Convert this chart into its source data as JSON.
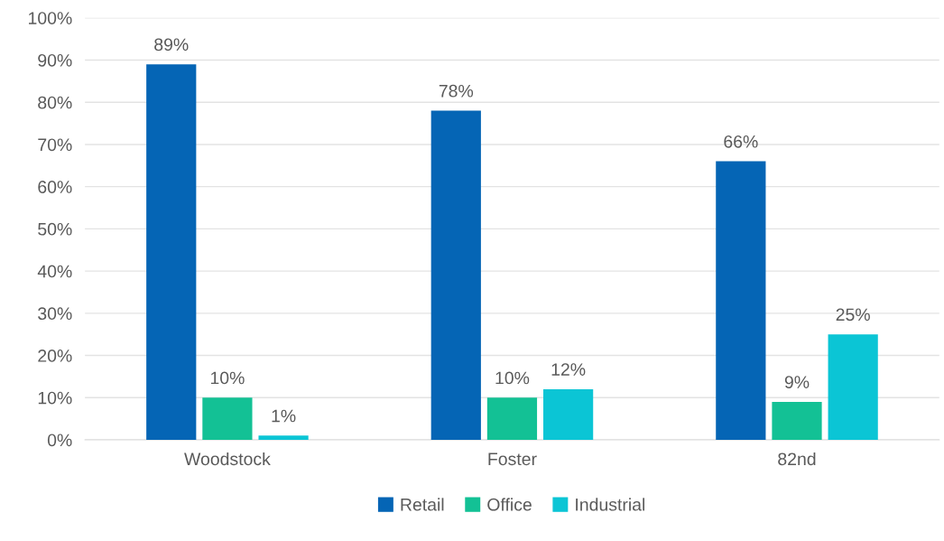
{
  "chart_data": {
    "type": "bar",
    "categories": [
      "Woodstock",
      "Foster",
      "82nd"
    ],
    "series": [
      {
        "name": "Retail",
        "color": "#0565b5",
        "values": [
          89,
          78,
          66
        ],
        "value_labels": [
          "89%",
          "78%",
          "66%"
        ]
      },
      {
        "name": "Office",
        "color": "#13c195",
        "values": [
          10,
          10,
          9
        ],
        "value_labels": [
          "10%",
          "10%",
          "9%"
        ]
      },
      {
        "name": "Industrial",
        "color": "#0bc5d5",
        "values": [
          1,
          12,
          25
        ],
        "value_labels": [
          "1%",
          "12%",
          "25%"
        ]
      }
    ],
    "ylim": [
      0,
      100
    ],
    "yticks": [
      {
        "value": 0,
        "label": "0%"
      },
      {
        "value": 10,
        "label": "10%"
      },
      {
        "value": 20,
        "label": "20%"
      },
      {
        "value": 30,
        "label": "30%"
      },
      {
        "value": 40,
        "label": "40%"
      },
      {
        "value": 50,
        "label": "50%"
      },
      {
        "value": 60,
        "label": "60%"
      },
      {
        "value": 70,
        "label": "70%"
      },
      {
        "value": 80,
        "label": "80%"
      },
      {
        "value": 90,
        "label": "90%"
      },
      {
        "value": 100,
        "label": "100%"
      }
    ],
    "grid": "y",
    "legend": "bottom"
  }
}
